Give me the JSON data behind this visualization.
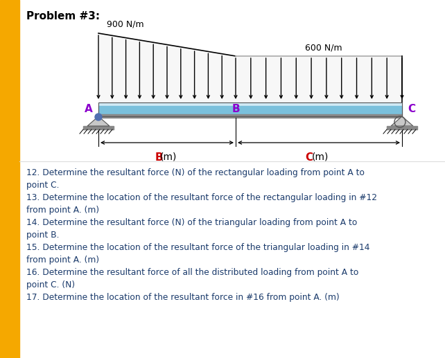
{
  "title": "Problem #3:",
  "title_fontsize": 11,
  "title_fontweight": "bold",
  "bg_color": "#ffffff",
  "left_bar_color": "#F5A800",
  "text_color": "#1a3a6b",
  "label_900": "900 N/m",
  "label_600": "600 N/m",
  "label_A": "A",
  "label_B": "B",
  "label_C": "C",
  "label_A_color": "#8B00CC",
  "label_B_color": "#8B00CC",
  "label_C_color": "#8B00CC",
  "dim_B_color": "#cc0000",
  "dim_C_color": "#cc0000",
  "beam_top_color": "#b8dce8",
  "beam_mid_color": "#7abcd8",
  "beam_bot_color": "#909090",
  "support_color": "#c0c0c0",
  "questions": [
    [
      "12. Determine the resultant force (N) of the rectangular loading from point A to",
      false
    ],
    [
      "point C.",
      false
    ],
    [
      "13. Determine the location of the resultant force of the rectangular loading in #12",
      false
    ],
    [
      "from point A. (m)",
      false
    ],
    [
      "14. Determine the resultant force (N) of the triangular loading from point A to",
      false
    ],
    [
      "point B.",
      false
    ],
    [
      "15. Determine the location of the resultant force of the triangular loading in #14",
      false
    ],
    [
      "from point A. (m)",
      false
    ],
    [
      "16. Determine the resultant force of all the distributed loading from point A to",
      false
    ],
    [
      "point C. (N)",
      false
    ],
    [
      "17. Determine the location of the resultant force in #16 from point A. (m)",
      false
    ]
  ]
}
